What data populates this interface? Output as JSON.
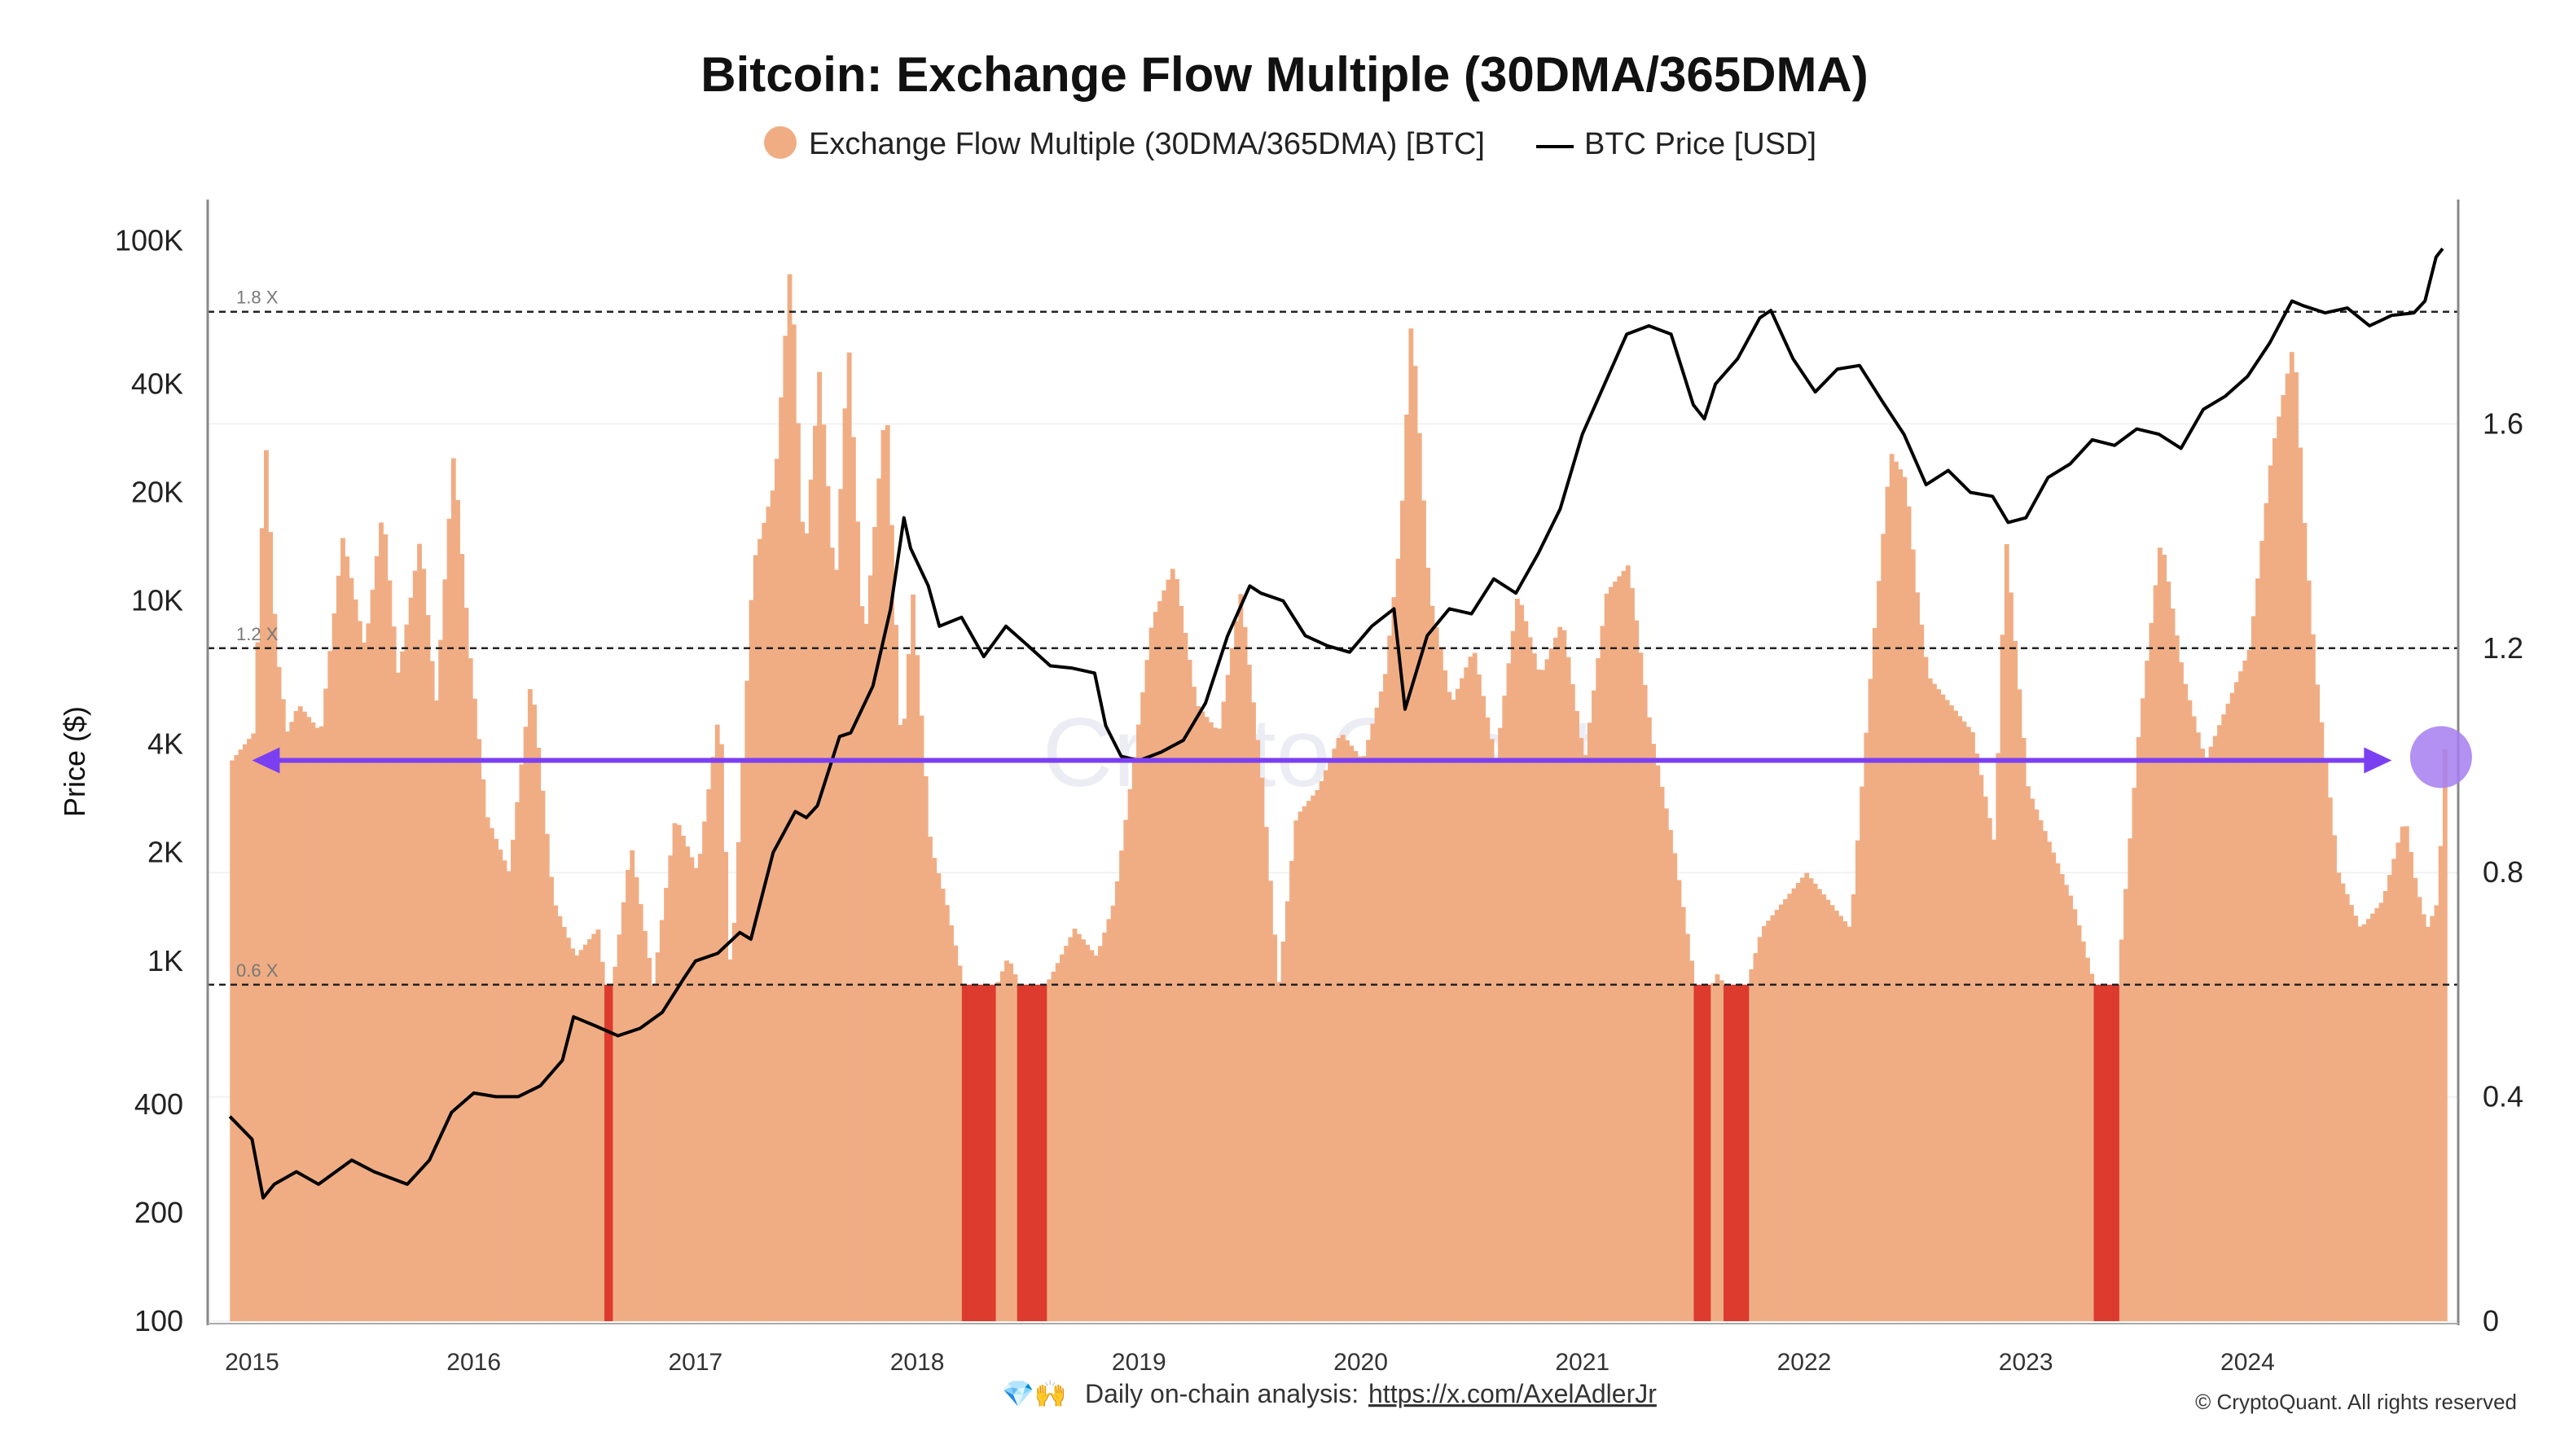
{
  "chart_data": {
    "type": "bar",
    "title": "Bitcoin: Exchange Flow Multiple (30DMA/365DMA)",
    "legend": [
      {
        "name": "Exchange Flow Multiple (30DMA/365DMA) [BTC]",
        "color": "#f0ad84",
        "marker": "circle"
      },
      {
        "name": "BTC Price [USD]",
        "color": "#000000",
        "marker": "line"
      }
    ],
    "legend_placement": "top-center",
    "y_left": {
      "label": "Price ($)",
      "scale": "log",
      "range": [
        100,
        130000
      ],
      "ticks": [
        "100K",
        "40K",
        "20K",
        "10K",
        "4K",
        "2K",
        "1K",
        "400",
        "200",
        "100"
      ],
      "tick_values": [
        100000,
        40000,
        20000,
        10000,
        4000,
        2000,
        1000,
        400,
        200,
        100
      ]
    },
    "y_right": {
      "label": "",
      "scale": "linear",
      "range": [
        0,
        2.0
      ],
      "ticks": [
        "1.6",
        "1.2",
        "0.8",
        "0.4",
        "0"
      ],
      "tick_values": [
        1.6,
        1.2,
        0.8,
        0.4,
        0
      ]
    },
    "x_ticks": [
      "2015",
      "2016",
      "2017",
      "2018",
      "2019",
      "2020",
      "2021",
      "2022",
      "2023",
      "2024"
    ],
    "x_tick_years": [
      2015,
      2016,
      2017,
      2018,
      2019,
      2020,
      2021,
      2022,
      2023,
      2024
    ],
    "x_range": [
      2014.8,
      2024.95
    ],
    "thresholds": [
      {
        "label": "1.8 X",
        "value": 1.8
      },
      {
        "label": "1.2 X",
        "value": 1.2
      },
      {
        "label": "0.6 X",
        "value": 0.6
      }
    ],
    "arrow_level": 1.0,
    "highlight_color": "#a57ef0",
    "bar_color": "#f0ad84",
    "low_bar_color": "#dc3b2e",
    "multiple_series": {
      "name": "Exchange Flow Multiple (30DMA/365DMA) [BTC]",
      "x": [
        2014.9,
        2015.0,
        2015.05,
        2015.1,
        2015.15,
        2015.2,
        2015.3,
        2015.4,
        2015.5,
        2015.58,
        2015.65,
        2015.75,
        2015.82,
        2015.9,
        2015.97,
        2016.05,
        2016.15,
        2016.25,
        2016.35,
        2016.45,
        2016.55,
        2016.6,
        2016.7,
        2016.8,
        2016.9,
        2017.0,
        2017.1,
        2017.15,
        2017.25,
        2017.35,
        2017.42,
        2017.48,
        2017.55,
        2017.62,
        2017.68,
        2017.75,
        2017.85,
        2017.92,
        2017.97,
        2018.05,
        2018.12,
        2018.2,
        2018.3,
        2018.4,
        2018.5,
        2018.6,
        2018.7,
        2018.8,
        2018.88,
        2018.95,
        2019.05,
        2019.15,
        2019.25,
        2019.35,
        2019.45,
        2019.55,
        2019.62,
        2019.7,
        2019.8,
        2019.9,
        2020.0,
        2020.1,
        2020.17,
        2020.22,
        2020.3,
        2020.4,
        2020.5,
        2020.6,
        2020.7,
        2020.8,
        2020.9,
        2021.0,
        2021.1,
        2021.2,
        2021.3,
        2021.4,
        2021.5,
        2021.55,
        2021.6,
        2021.7,
        2021.8,
        2021.9,
        2022.0,
        2022.1,
        2022.2,
        2022.3,
        2022.38,
        2022.45,
        2022.5,
        2022.55,
        2022.65,
        2022.75,
        2022.85,
        2022.9,
        2023.0,
        2023.1,
        2023.2,
        2023.3,
        2023.4,
        2023.5,
        2023.6,
        2023.7,
        2023.8,
        2023.9,
        2024.0,
        2024.1,
        2024.2,
        2024.25,
        2024.3,
        2024.4,
        2024.5,
        2024.6,
        2024.7,
        2024.75,
        2024.8,
        2024.85,
        2024.88
      ],
      "values": [
        1.0,
        1.05,
        1.58,
        1.2,
        1.05,
        1.1,
        1.05,
        1.4,
        1.2,
        1.45,
        1.15,
        1.4,
        1.1,
        1.55,
        1.2,
        0.9,
        0.8,
        1.15,
        0.75,
        0.65,
        0.7,
        0.55,
        0.85,
        0.6,
        0.9,
        0.8,
        1.1,
        0.6,
        1.35,
        1.5,
        1.9,
        1.35,
        1.7,
        1.3,
        1.75,
        1.2,
        1.65,
        1.0,
        1.3,
        0.85,
        0.75,
        0.6,
        0.55,
        0.65,
        0.55,
        0.62,
        0.7,
        0.65,
        0.75,
        0.95,
        1.25,
        1.35,
        1.1,
        1.05,
        1.3,
        0.95,
        0.6,
        0.9,
        0.95,
        1.05,
        1.0,
        1.15,
        1.4,
        1.8,
        1.3,
        1.1,
        1.2,
        1.0,
        1.3,
        1.15,
        1.25,
        1.0,
        1.3,
        1.35,
        1.05,
        0.85,
        0.6,
        0.58,
        0.62,
        0.55,
        0.7,
        0.75,
        0.8,
        0.75,
        0.7,
        1.2,
        1.55,
        1.5,
        1.3,
        1.15,
        1.1,
        1.05,
        0.85,
        1.4,
        0.95,
        0.85,
        0.75,
        0.6,
        0.58,
        1.05,
        1.4,
        1.15,
        1.0,
        1.1,
        1.2,
        1.55,
        1.75,
        1.4,
        1.15,
        0.8,
        0.7,
        0.75,
        0.9,
        0.78,
        0.7,
        0.75,
        1.02
      ]
    },
    "price_series": {
      "name": "BTC Price [USD]",
      "x": [
        2014.9,
        2015.0,
        2015.05,
        2015.1,
        2015.2,
        2015.3,
        2015.45,
        2015.55,
        2015.7,
        2015.8,
        2015.9,
        2016.0,
        2016.1,
        2016.2,
        2016.3,
        2016.4,
        2016.45,
        2016.55,
        2016.65,
        2016.75,
        2016.85,
        2016.95,
        2017.0,
        2017.1,
        2017.2,
        2017.25,
        2017.35,
        2017.45,
        2017.5,
        2017.55,
        2017.65,
        2017.7,
        2017.8,
        2017.88,
        2017.94,
        2017.97,
        2018.05,
        2018.1,
        2018.2,
        2018.3,
        2018.4,
        2018.5,
        2018.6,
        2018.7,
        2018.8,
        2018.85,
        2018.92,
        2019.0,
        2019.1,
        2019.2,
        2019.3,
        2019.4,
        2019.5,
        2019.55,
        2019.65,
        2019.75,
        2019.85,
        2019.95,
        2020.05,
        2020.15,
        2020.2,
        2020.3,
        2020.4,
        2020.5,
        2020.6,
        2020.7,
        2020.8,
        2020.9,
        2021.0,
        2021.1,
        2021.2,
        2021.3,
        2021.4,
        2021.5,
        2021.55,
        2021.6,
        2021.7,
        2021.8,
        2021.85,
        2021.95,
        2022.05,
        2022.15,
        2022.25,
        2022.35,
        2022.45,
        2022.55,
        2022.65,
        2022.75,
        2022.85,
        2022.92,
        2023.0,
        2023.1,
        2023.2,
        2023.3,
        2023.4,
        2023.5,
        2023.6,
        2023.7,
        2023.8,
        2023.9,
        2024.0,
        2024.1,
        2024.2,
        2024.25,
        2024.35,
        2024.45,
        2024.55,
        2024.65,
        2024.75,
        2024.8,
        2024.85,
        2024.88
      ],
      "values": [
        370,
        320,
        220,
        240,
        260,
        240,
        280,
        260,
        240,
        280,
        380,
        430,
        420,
        420,
        450,
        530,
        700,
        660,
        620,
        650,
        720,
        900,
        1000,
        1050,
        1200,
        1150,
        2000,
        2600,
        2500,
        2700,
        4200,
        4300,
        5800,
        9500,
        17000,
        14000,
        11000,
        8500,
        9000,
        7000,
        8500,
        7500,
        6600,
        6500,
        6300,
        4500,
        3700,
        3600,
        3800,
        4100,
        5200,
        8000,
        11000,
        10500,
        10000,
        8000,
        7500,
        7200,
        8500,
        9500,
        5000,
        8000,
        9500,
        9200,
        11500,
        10500,
        13500,
        18000,
        29000,
        40000,
        55000,
        58000,
        55000,
        35000,
        32000,
        40000,
        47000,
        61000,
        64000,
        47000,
        38000,
        44000,
        45000,
        36000,
        29000,
        21000,
        23000,
        20000,
        19500,
        16500,
        17000,
        22000,
        24000,
        28000,
        27000,
        30000,
        29000,
        26500,
        34000,
        37000,
        42000,
        52000,
        68000,
        66000,
        63000,
        65000,
        58000,
        62000,
        63000,
        68000,
        90000,
        95000
      ]
    }
  },
  "watermark": "CryptoQuant",
  "footer": {
    "emoji": "💎🙌",
    "text": "Daily on-chain analysis:",
    "link": "https://x.com/AxelAdlerJr",
    "copyright": "© CryptoQuant. All rights reserved"
  }
}
